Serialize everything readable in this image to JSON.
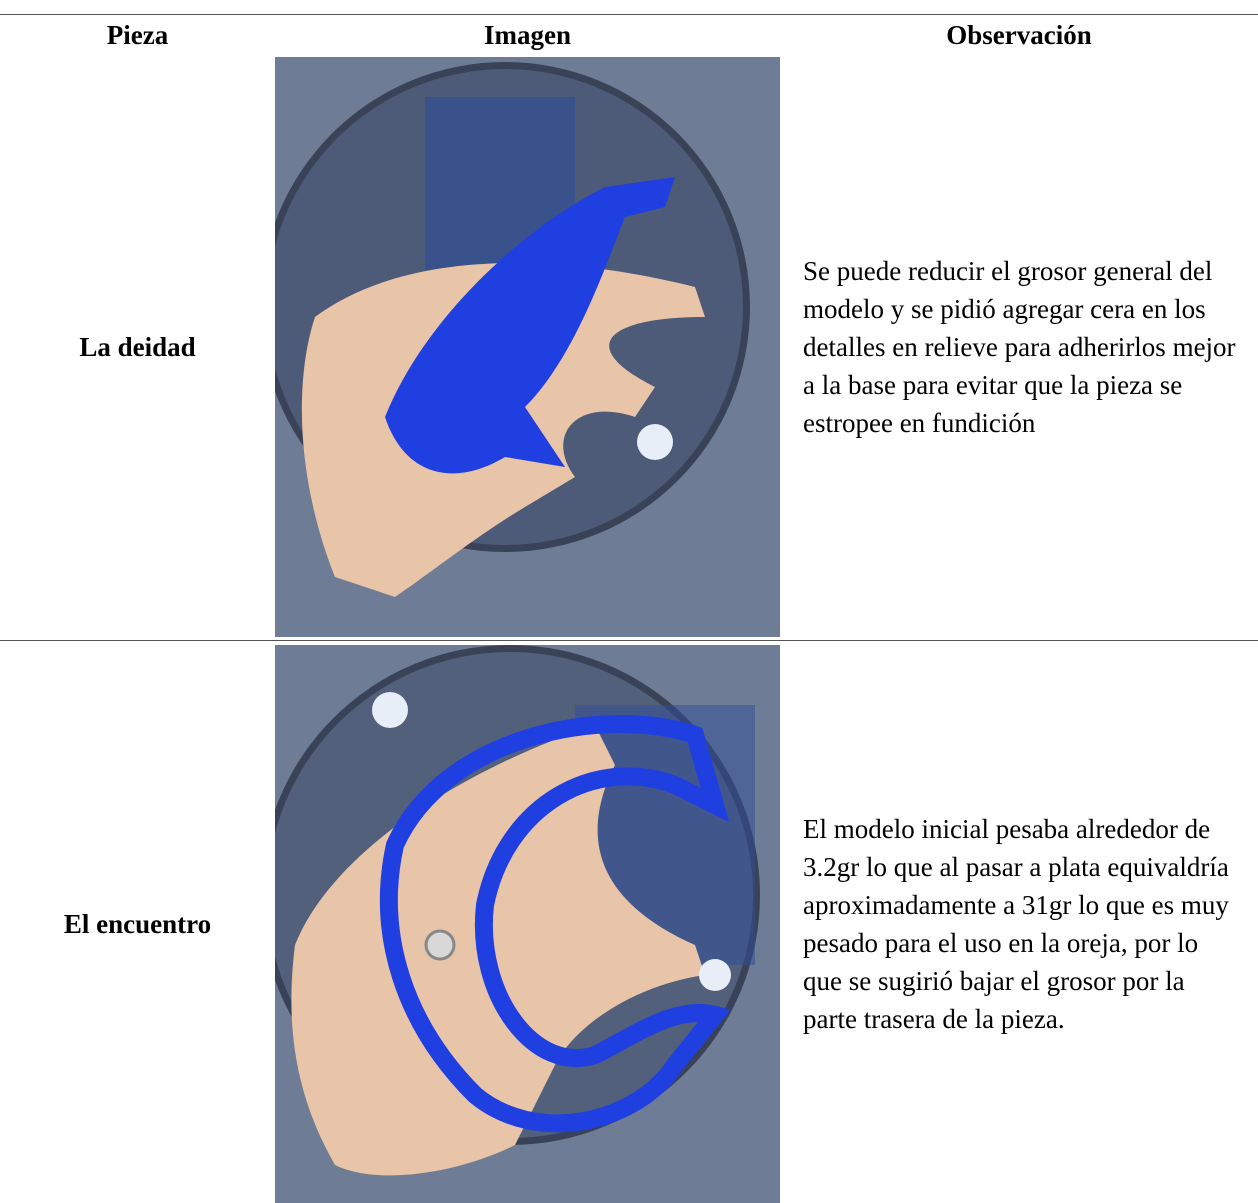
{
  "header": {
    "columns": [
      "Pieza",
      "Imagen",
      "Observación"
    ]
  },
  "table": {
    "rows": [
      [
        "La deidad",
        "Se puede reducir el grosor general del modelo y se pidió agregar cera en los detalles en relieve para adherirlos mejor a la base para evitar que la pieza se estropee en fundición"
      ],
      [
        "El encuentro",
        "El modelo inicial pesaba alrededor de 3.2gr lo que al pasar a plata equivaldría aproximadamente a 31gr lo que es muy pesado para el uso en la oreja, por lo que se sugirió bajar el grosor por la parte trasera de la pieza."
      ]
    ]
  }
}
